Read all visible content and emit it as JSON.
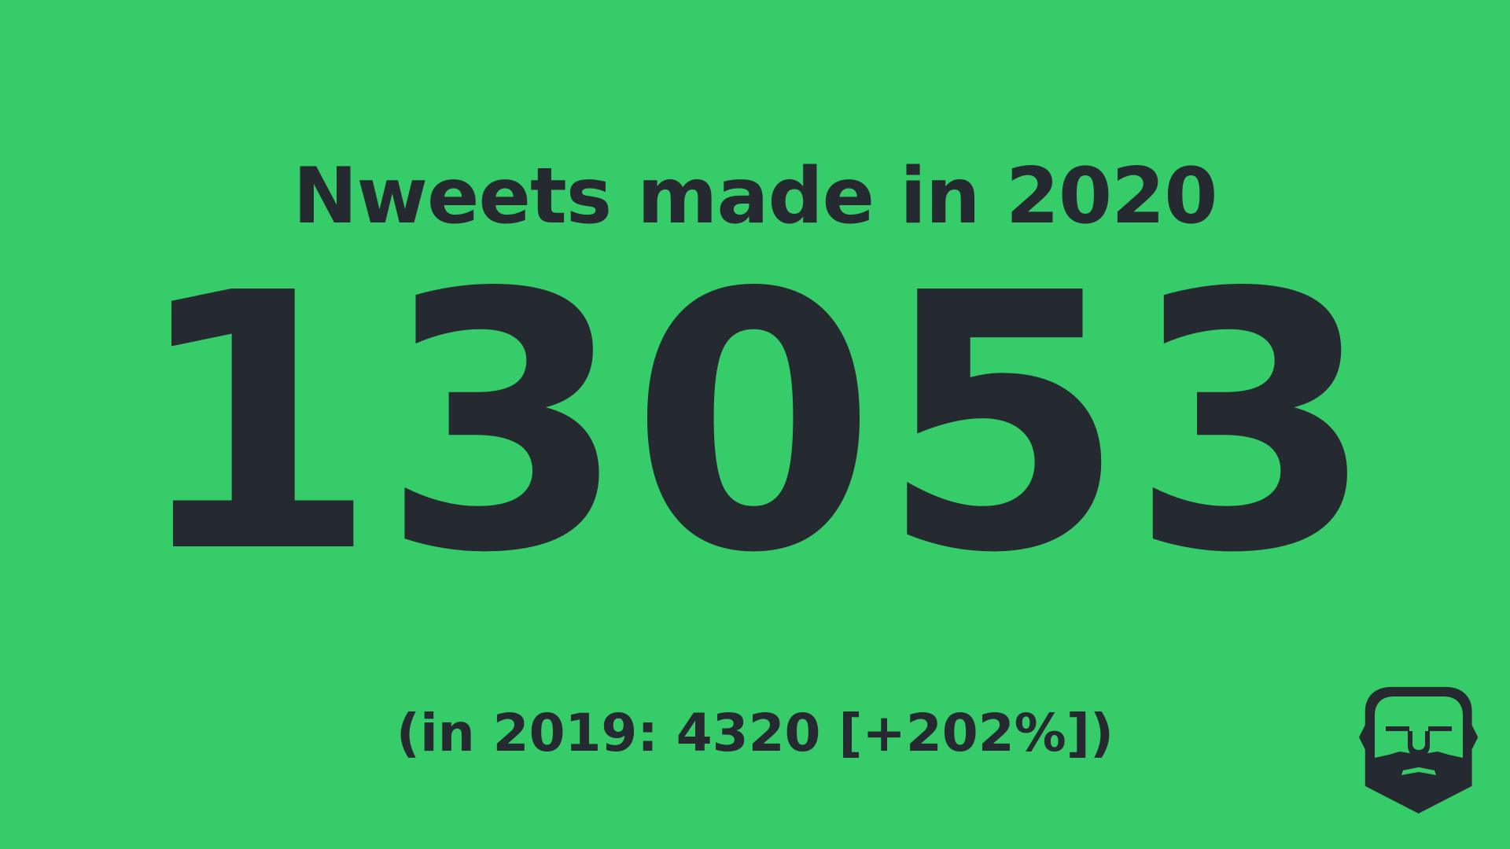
{
  "slide": {
    "title": "Nweets made in 2020",
    "count": "13053",
    "comparison": "(in 2019: 4320 [+202%])",
    "logo_icon": "bearded-face-icon",
    "background_color": "#36cc6a",
    "text_color": "#252a30"
  }
}
